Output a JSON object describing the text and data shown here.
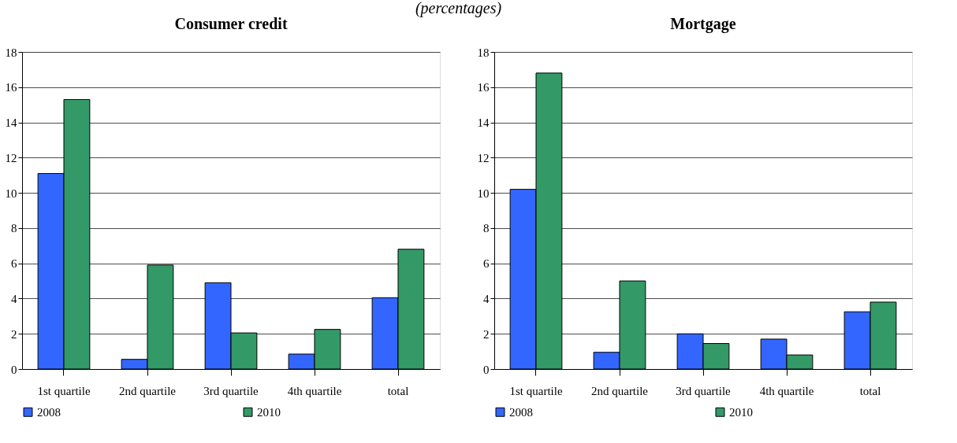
{
  "chart_data": [
    {
      "type": "bar",
      "title": "Consumer credit",
      "subtitle": "(percentages)",
      "categories": [
        "1st quartile",
        "2nd quartile",
        "3rd quartile",
        "4th quartile",
        "total"
      ],
      "series": [
        {
          "name": "2008",
          "color": "#3366ff",
          "values": [
            11.1,
            0.55,
            4.9,
            0.85,
            4.05
          ]
        },
        {
          "name": "2010",
          "color": "#339966",
          "values": [
            15.3,
            5.9,
            2.05,
            2.25,
            6.8
          ]
        }
      ],
      "ylim": [
        0,
        18
      ],
      "yticks": [
        0,
        2,
        4,
        6,
        8,
        10,
        12,
        14,
        16,
        18
      ],
      "grid": "y",
      "legend": "bottom"
    },
    {
      "type": "bar",
      "title": "Mortgage",
      "categories": [
        "1st quartile",
        "2nd quartile",
        "3rd quartile",
        "4th quartile",
        "total"
      ],
      "series": [
        {
          "name": "2008",
          "color": "#3366ff",
          "values": [
            10.2,
            0.95,
            2.0,
            1.7,
            3.25
          ]
        },
        {
          "name": "2010",
          "color": "#339966",
          "values": [
            16.8,
            5.0,
            1.45,
            0.8,
            3.8
          ]
        }
      ],
      "ylim": [
        0,
        18
      ],
      "yticks": [
        0,
        2,
        4,
        6,
        8,
        10,
        12,
        14,
        16,
        18
      ],
      "grid": "y",
      "legend": "bottom"
    }
  ]
}
